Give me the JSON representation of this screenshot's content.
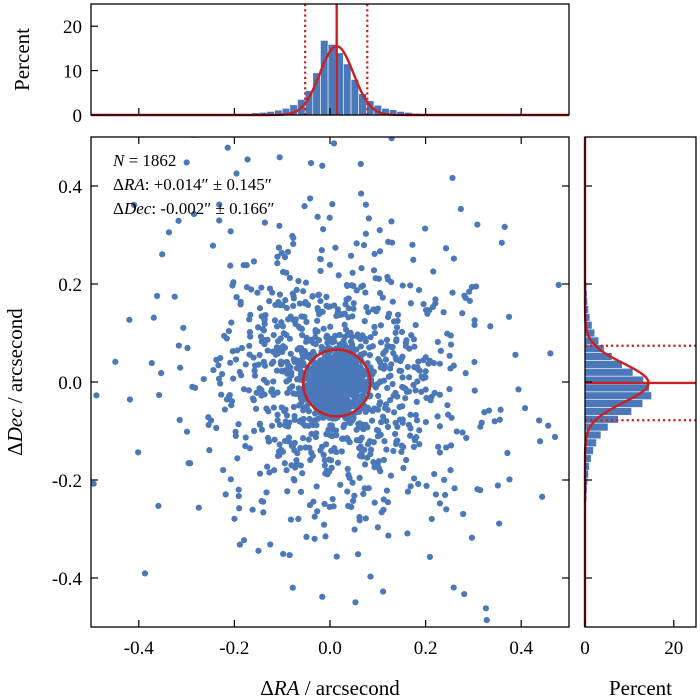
{
  "chart_data": [
    {
      "id": "scatter",
      "type": "scatter",
      "xlabel": {
        "greek": "Δ",
        "italic": "RA",
        "rest": " / arcsecond"
      },
      "ylabel": {
        "greek": "Δ",
        "italic": "Dec",
        "rest": " / arcsecond"
      },
      "xlim": [
        -0.5,
        0.5
      ],
      "ylim": [
        -0.5,
        0.5
      ],
      "xticks": [
        -0.4,
        -0.2,
        0.0,
        0.2,
        0.4
      ],
      "xtick_labels": [
        "-0.4",
        "-0.2",
        "0.0",
        "0.2",
        "0.4"
      ],
      "yticks": [
        -0.4,
        -0.2,
        0.0,
        0.2,
        0.4
      ],
      "ytick_labels": [
        "-0.4",
        "-0.2",
        "0.0",
        "0.2",
        "0.4"
      ],
      "n_points": 1862,
      "mean_ra": 0.014,
      "std_ra": 0.145,
      "mean_dec": -0.002,
      "std_dec": 0.166,
      "circle": {
        "center": [
          0.014,
          -0.002
        ],
        "radius": 0.07
      },
      "point_color": "#4a78b8",
      "fit_color": "#cc1f1f",
      "annotations": [
        {
          "italic": "N",
          "rest": " = 1862"
        },
        {
          "greek": "Δ",
          "italic": "RA",
          "rest": ": +0.014″ ± 0.145″"
        },
        {
          "greek": "Δ",
          "italic": "Dec",
          "rest": ": -0.002″ ± 0.166″"
        }
      ]
    },
    {
      "id": "top-histogram",
      "type": "bar",
      "ylabel": "Percent",
      "ylim": [
        0,
        25
      ],
      "yticks": [
        0,
        10,
        20
      ],
      "ytick_labels": [
        "0",
        "10",
        "20"
      ],
      "bin_edges_start": -0.18,
      "bin_width": 0.016,
      "values": [
        0.3,
        0.5,
        0.6,
        0.8,
        1.1,
        1.5,
        2.3,
        3.5,
        5.5,
        9.5,
        16.8,
        15.9,
        14.0,
        11.5,
        8.0,
        4.8,
        3.2,
        2.2,
        1.5,
        1.2,
        0.8,
        0.6,
        0.4
      ],
      "fit_peak": 15.5,
      "fit_mean": 0.014,
      "fit_sigma": 0.035,
      "dotted_lines_x": [
        -0.052,
        0.078
      ]
    },
    {
      "id": "right-histogram",
      "type": "bar",
      "orientation": "horizontal",
      "xlabel": "Percent",
      "xlim": [
        0,
        25
      ],
      "xticks": [
        0,
        20
      ],
      "xtick_labels": [
        "0",
        "20"
      ],
      "bin_edges_start": -0.26,
      "bin_width": 0.016,
      "values": [
        0.3,
        0.4,
        0.5,
        0.6,
        0.8,
        1.0,
        1.4,
        1.9,
        2.6,
        3.6,
        5.2,
        7.5,
        10.5,
        13.0,
        15.0,
        14.5,
        13.2,
        10.8,
        8.4,
        6.1,
        4.3,
        3.1,
        2.2,
        1.6,
        1.1,
        0.8,
        0.6,
        0.5,
        0.4,
        0.3,
        0.3,
        0.2
      ],
      "fit_peak": 14.3,
      "fit_mean": -0.002,
      "fit_sigma": 0.04,
      "dotted_lines_y": [
        0.074,
        -0.078
      ]
    }
  ]
}
